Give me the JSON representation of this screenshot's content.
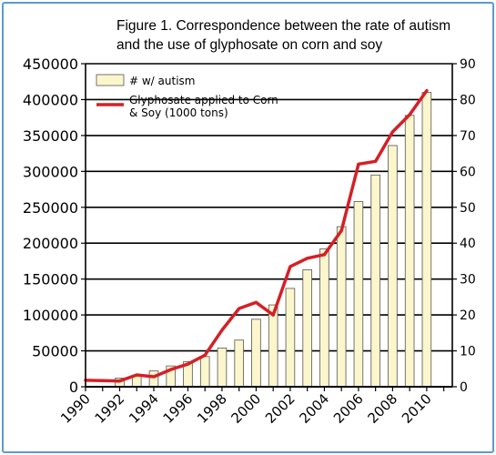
{
  "figure": {
    "title_line1": "Figure 1. Correspondence between the rate of autism",
    "title_line2": "and the use of glyphosate on corn and soy"
  },
  "colors": {
    "frame": "#5b9bd5",
    "bar_fill": "#fbf6cc",
    "bar_stroke": "#555555",
    "line": "#d42027",
    "grid": "#000000"
  },
  "chart_data": {
    "type": "bar",
    "title": "",
    "xlabel": "",
    "ylabel": "",
    "grid": true,
    "legend_position": "top-left",
    "x_ticks": [
      "1990",
      "1992",
      "1994",
      "1996",
      "1998",
      "2000",
      "2002",
      "2004",
      "2006",
      "2008",
      "2010"
    ],
    "ylim": [
      0,
      450000
    ],
    "y_ticks": [
      "0",
      "50000",
      "100000",
      "150000",
      "200000",
      "250000",
      "300000",
      "350000",
      "400000",
      "450000"
    ],
    "y2lim": [
      0,
      90
    ],
    "y2_ticks": [
      "0",
      "10",
      "20",
      "30",
      "40",
      "50",
      "60",
      "70",
      "80",
      "90"
    ],
    "series": [
      {
        "name": "# w/ autism",
        "type": "bar",
        "axis": "left",
        "x": [
          1992,
          1993,
          1994,
          1995,
          1996,
          1997,
          1998,
          1999,
          2000,
          2001,
          2002,
          2003,
          2004,
          2005,
          2006,
          2007,
          2008,
          2009,
          2010
        ],
        "values": [
          12000,
          15000,
          22000,
          29000,
          35000,
          42000,
          54000,
          65000,
          94000,
          114000,
          137000,
          163000,
          192000,
          223000,
          258000,
          295000,
          336000,
          378000,
          410000
        ]
      },
      {
        "name": "Glyphosate applied to Corn & Soy (1000 tons)",
        "legend_lines": [
          "Glyphosate applied to Corn",
          "& Soy (1000 tons)"
        ],
        "type": "line",
        "axis": "right",
        "x": [
          1990,
          1991,
          1992,
          1993,
          1994,
          1995,
          1996,
          1997,
          1998,
          1999,
          2000,
          2001,
          2002,
          2003,
          2004,
          2005,
          2006,
          2007,
          2008,
          2009,
          2010
        ],
        "values": [
          1.8,
          1.7,
          1.6,
          3.3,
          2.8,
          4.8,
          6.3,
          8.8,
          15.8,
          21.8,
          23.5,
          20.0,
          33.5,
          35.8,
          36.8,
          43.5,
          62.0,
          62.8,
          71.0,
          75.8,
          82.5
        ]
      }
    ]
  }
}
